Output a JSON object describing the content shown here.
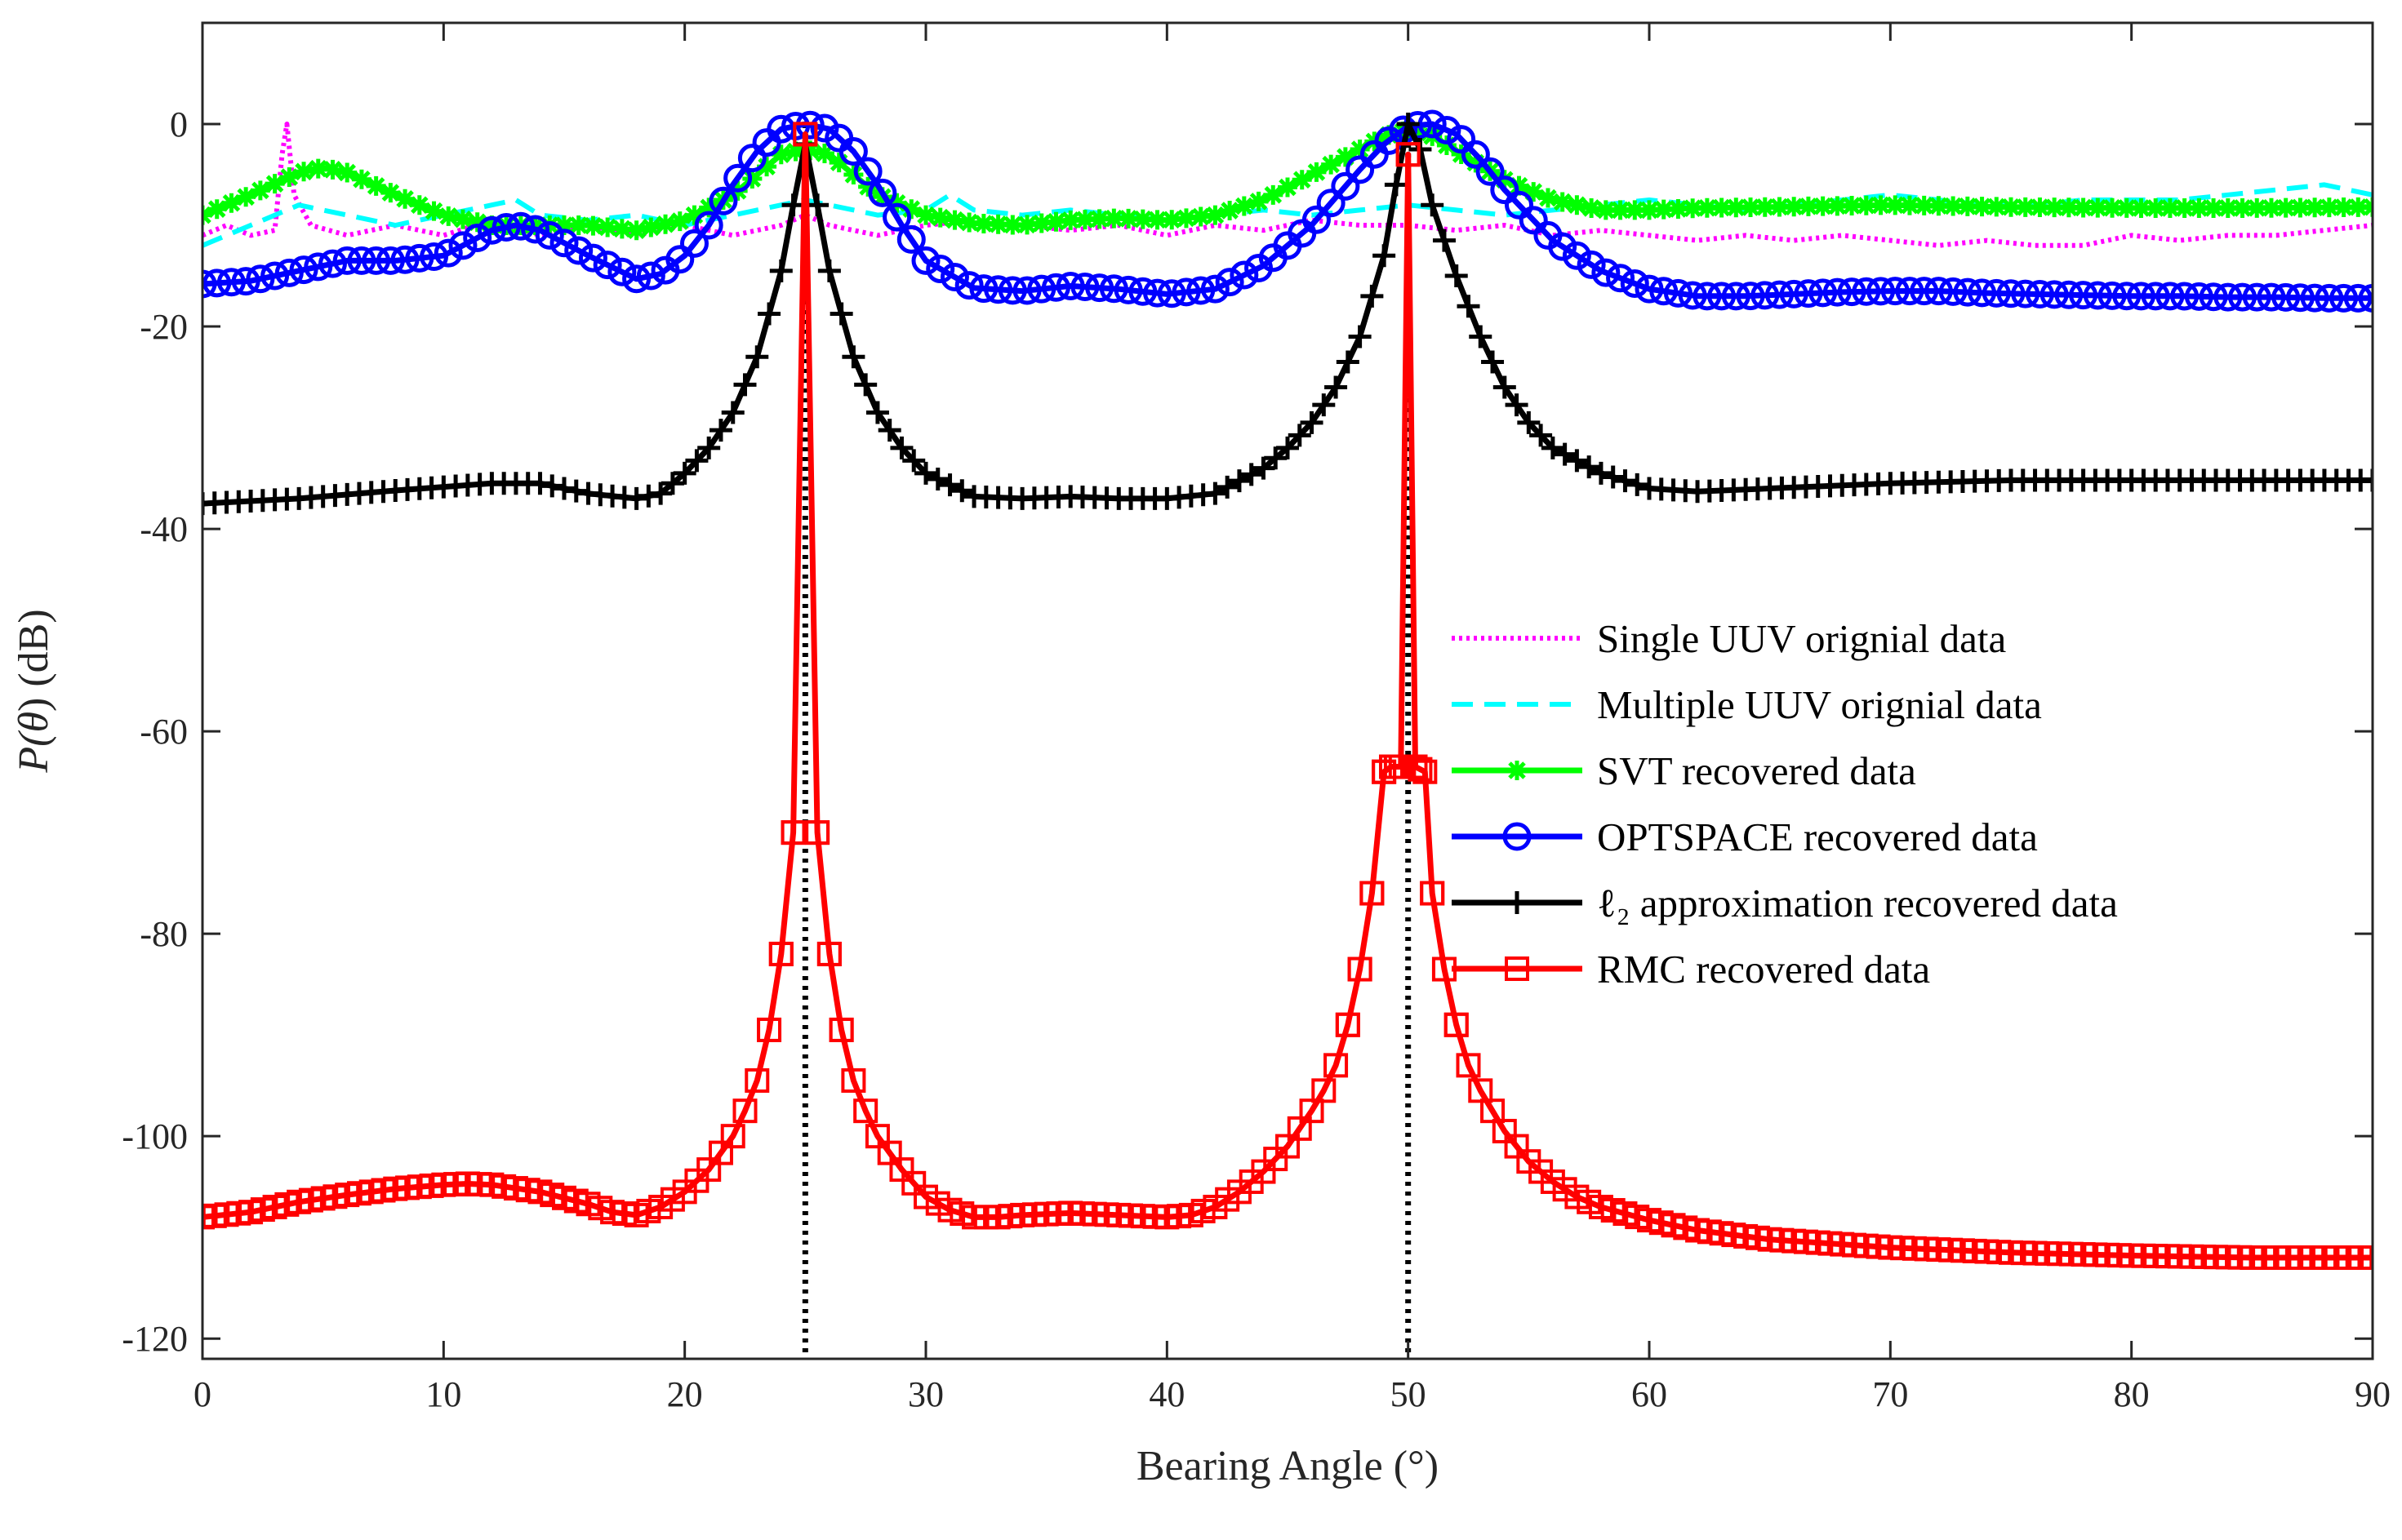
{
  "chart_data": {
    "type": "line",
    "title": "",
    "xlabel": "Bearing Angle (°)",
    "ylabel": "P(θ) (dB)",
    "ylabel_parts": {
      "p": "P(",
      "theta": "θ",
      "rest": ") (dB)"
    },
    "xlim": [
      0,
      90
    ],
    "ylim": [
      -122,
      10
    ],
    "xticks": [
      0,
      10,
      20,
      30,
      40,
      50,
      60,
      70,
      80,
      90
    ],
    "yticks": [
      0,
      -20,
      -40,
      -60,
      -80,
      -100,
      -120
    ],
    "grid": false,
    "legend_position": "center-right",
    "true_bearings": [
      25,
      50
    ],
    "series": [
      {
        "name": "Single UUV orignial data",
        "color": "#ff00ff",
        "style": "dotted",
        "marker": "none",
        "x": [
          0,
          1,
          2,
          3,
          3.3,
          3.5,
          3.8,
          4.5,
          6,
          8,
          10,
          12,
          14,
          16,
          18,
          20,
          22,
          24,
          25,
          26,
          28,
          30,
          32,
          34,
          36,
          38,
          40,
          42,
          44,
          46,
          48,
          50,
          52,
          54,
          56,
          58,
          60,
          62,
          64,
          66,
          68,
          70,
          72,
          74,
          76,
          78,
          80,
          82,
          84,
          86,
          88,
          90
        ],
        "y": [
          -11,
          -10,
          -11,
          -10.5,
          -3,
          0,
          -7,
          -10,
          -11,
          -10,
          -11,
          -9.5,
          -11,
          -10,
          -11,
          -10,
          -11,
          -10,
          -9,
          -10,
          -11,
          -10,
          -9.5,
          -10,
          -10.5,
          -10,
          -11,
          -10,
          -10.5,
          -9.5,
          -10,
          -10,
          -10.5,
          -10,
          -11,
          -10.5,
          -11,
          -11.5,
          -11,
          -11.5,
          -11,
          -11.5,
          -12,
          -11.5,
          -12,
          -12,
          -11,
          -11.5,
          -11,
          -11,
          -10.5,
          -10
        ]
      },
      {
        "name": "Multiple UUV orignial data",
        "color": "#00ffff",
        "style": "dashed",
        "marker": "none",
        "x": [
          0,
          2,
          4,
          6,
          8,
          10,
          12,
          13,
          14,
          16,
          18,
          20,
          22,
          24,
          25,
          26,
          28,
          30,
          31,
          32,
          34,
          36,
          38,
          40,
          42,
          44,
          46,
          48,
          50,
          52,
          54,
          56,
          58,
          60,
          62,
          64,
          66,
          68,
          70,
          72,
          74,
          76,
          78,
          80,
          82,
          84,
          86,
          88,
          90
        ],
        "y": [
          -12,
          -10,
          -8,
          -9,
          -10,
          -9,
          -8,
          -7.5,
          -9,
          -9.5,
          -9,
          -10,
          -9,
          -8,
          -7.5,
          -8,
          -9,
          -8.5,
          -7,
          -8.5,
          -9,
          -8.5,
          -9,
          -9.5,
          -9,
          -8.5,
          -9,
          -8.5,
          -8,
          -8.5,
          -9,
          -8.5,
          -8,
          -7.5,
          -8,
          -8.5,
          -8,
          -7.5,
          -7,
          -7.5,
          -8,
          -8,
          -7.5,
          -7.5,
          -7.5,
          -7,
          -6.5,
          -6,
          -7
        ]
      },
      {
        "name": "SVT recovered data",
        "color": "#00ff00",
        "style": "solid",
        "marker": "asterisk",
        "x": [
          0,
          2,
          4,
          5,
          6,
          8,
          10,
          12,
          14,
          16,
          18,
          20,
          22,
          23,
          24,
          25,
          26,
          27,
          28,
          30,
          32,
          34,
          36,
          38,
          40,
          42,
          44,
          46,
          48,
          49,
          50,
          51,
          52,
          54,
          56,
          58,
          60,
          62,
          65,
          70,
          75,
          80,
          85,
          90
        ],
        "y": [
          -9,
          -7,
          -4.8,
          -4.3,
          -4.8,
          -7,
          -9,
          -10,
          -10,
          -10,
          -10.5,
          -9.5,
          -7,
          -5,
          -3,
          -2.5,
          -3,
          -5,
          -7,
          -9,
          -9.8,
          -10,
          -9.5,
          -9.3,
          -9.5,
          -9,
          -7.5,
          -5,
          -2.5,
          -1.2,
          -0.6,
          -1.2,
          -2.7,
          -5.5,
          -7.5,
          -8.5,
          -8.5,
          -8.3,
          -8.2,
          -8,
          -8.2,
          -8.3,
          -8.3,
          -8.2
        ]
      },
      {
        "name": "OPTSPACE recovered data",
        "color": "#0000ff",
        "style": "solid",
        "marker": "circle",
        "x": [
          0,
          2,
          4,
          6,
          8,
          10,
          12,
          13,
          14,
          16,
          18,
          19,
          20,
          21,
          22,
          23,
          24,
          25,
          26,
          27,
          28,
          29,
          30,
          32,
          34,
          36,
          38,
          40,
          42,
          44,
          46,
          48,
          49,
          50,
          51,
          52,
          53,
          54,
          56,
          58,
          60,
          62,
          64,
          66,
          68,
          70,
          72,
          74,
          76,
          78,
          80,
          82,
          84,
          86,
          88,
          90
        ],
        "y": [
          -15.8,
          -15.5,
          -14.5,
          -13.5,
          -13.5,
          -13,
          -10.5,
          -10,
          -10.5,
          -13,
          -15.3,
          -14.8,
          -13,
          -10,
          -6,
          -2.7,
          -0.5,
          0,
          -0.5,
          -2.7,
          -6,
          -10,
          -13.5,
          -16.2,
          -16.5,
          -16,
          -16.3,
          -16.8,
          -16.3,
          -14,
          -10,
          -4.5,
          -2,
          -0.2,
          0,
          -1,
          -3.5,
          -6.5,
          -11.5,
          -14.5,
          -16.3,
          -17,
          -17,
          -16.8,
          -16.6,
          -16.5,
          -16.5,
          -16.7,
          -16.8,
          -16.9,
          -17,
          -17,
          -17.1,
          -17.1,
          -17.2,
          -17.2
        ]
      },
      {
        "name": "ℓ₂ approximation recovered data",
        "color": "#000000",
        "style": "solid",
        "marker": "plus",
        "x": [
          0,
          4,
          8,
          12,
          14,
          16,
          18,
          19,
          20,
          21,
          22,
          23,
          24,
          24.5,
          25,
          25.5,
          26,
          27,
          28,
          29,
          30,
          32,
          34,
          36,
          38,
          40,
          42,
          44,
          45,
          46,
          47,
          48,
          49,
          49.5,
          50,
          50.5,
          51,
          52,
          53,
          54,
          55,
          56,
          58,
          60,
          62,
          65,
          70,
          75,
          80,
          85,
          90
        ],
        "y": [
          -37.5,
          -37,
          -36.2,
          -35.5,
          -35.5,
          -36.5,
          -37,
          -36.5,
          -34.5,
          -32,
          -28.5,
          -23,
          -14.5,
          -8,
          -2,
          -8,
          -14.5,
          -23,
          -28.5,
          -32,
          -34.5,
          -36.8,
          -37,
          -36.8,
          -37,
          -37,
          -36.5,
          -34,
          -32,
          -29.5,
          -26,
          -21,
          -13,
          -6,
          0,
          -2.5,
          -8,
          -15,
          -21,
          -26,
          -29.5,
          -32,
          -34.5,
          -36,
          -36.3,
          -36,
          -35.5,
          -35.2,
          -35.2,
          -35.2,
          -35.2
        ]
      },
      {
        "name": "RMC recovered data",
        "color": "#ff0000",
        "style": "solid",
        "marker": "square",
        "x": [
          0,
          2,
          4,
          6,
          8,
          10,
          11,
          12,
          14,
          16,
          17,
          18,
          19,
          20,
          21,
          22,
          22.5,
          23,
          23.5,
          24,
          24.5,
          25,
          25.5,
          26,
          26.5,
          27,
          27.5,
          28,
          29,
          30,
          31,
          32,
          33,
          34,
          36,
          38,
          40,
          41,
          42,
          43,
          44,
          45,
          46,
          46.5,
          47,
          47.5,
          48,
          48.5,
          49,
          49.3,
          49.7,
          50,
          50.3,
          50.7,
          51,
          51.5,
          52,
          52.5,
          53,
          54,
          55,
          56,
          57,
          58,
          60,
          62,
          65,
          70,
          75,
          80,
          85,
          90
        ],
        "y": [
          -108,
          -107.5,
          -106.5,
          -105.8,
          -105.2,
          -104.8,
          -104.7,
          -104.8,
          -105.5,
          -106.7,
          -107.5,
          -107.8,
          -107,
          -105.5,
          -103.3,
          -100,
          -97.5,
          -94.5,
          -89.5,
          -82,
          -70,
          -1,
          -70,
          -82,
          -89.5,
          -94.5,
          -97.5,
          -100,
          -103.3,
          -106,
          -107.3,
          -108,
          -108,
          -107.8,
          -107.6,
          -107.8,
          -108,
          -107.8,
          -107,
          -105.5,
          -103.5,
          -101,
          -97.5,
          -95.5,
          -93,
          -89,
          -83.5,
          -76,
          -64,
          -63.5,
          -63.5,
          -3,
          -63.5,
          -64,
          -76,
          -83.5,
          -89,
          -93,
          -95.5,
          -99.5,
          -102.5,
          -104.5,
          -106,
          -107,
          -108.3,
          -109.3,
          -110.2,
          -111,
          -111.5,
          -111.8,
          -112,
          -112
        ]
      }
    ]
  }
}
